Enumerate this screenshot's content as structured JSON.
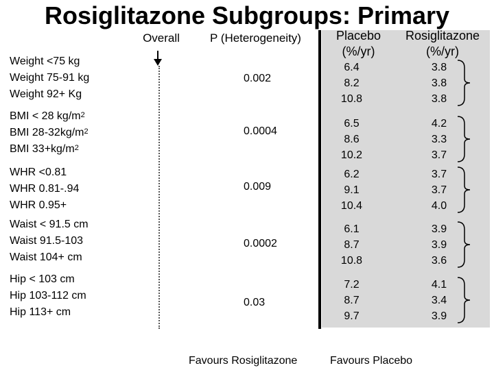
{
  "title": "Rosiglitazone Subgroups: Primary",
  "headers": {
    "overall": "Overall",
    "p_heterogeneity": "P (Heterogeneity)",
    "placebo_line1": "Placebo",
    "placebo_line2": "(%/yr)",
    "rosiglitazone_line1": "Rosiglitazone",
    "rosiglitazone_line2": "(%/yr)"
  },
  "groups": [
    {
      "labels": [
        {
          "text": "Weight <75 kg",
          "sup": ""
        },
        {
          "text": "Weight 75-91 kg",
          "sup": ""
        },
        {
          "text": "Weight 92+ Kg",
          "sup": ""
        }
      ],
      "p_value": "0.002",
      "placebo": [
        "6.4",
        "8.2",
        "10.8"
      ],
      "rosiglitazone": [
        "3.8",
        "3.8",
        "3.8"
      ]
    },
    {
      "labels": [
        {
          "text": "BMI < 28 kg/m",
          "sup": "2"
        },
        {
          "text": "BMI 28-32kg/m",
          "sup": "2"
        },
        {
          "text": "BMI 33+kg/m",
          "sup": "2"
        }
      ],
      "p_value": "0.0004",
      "placebo": [
        "6.5",
        "8.6",
        "10.2"
      ],
      "rosiglitazone": [
        "4.2",
        "3.3",
        "3.7"
      ]
    },
    {
      "labels": [
        {
          "text": "WHR <0.81",
          "sup": ""
        },
        {
          "text": "WHR 0.81-.94",
          "sup": ""
        },
        {
          "text": "WHR 0.95+",
          "sup": ""
        }
      ],
      "p_value": "0.009",
      "placebo": [
        "6.2",
        "9.1",
        "10.4"
      ],
      "rosiglitazone": [
        "3.7",
        "3.7",
        "4.0"
      ]
    },
    {
      "labels": [
        {
          "text": "Waist < 91.5 cm",
          "sup": ""
        },
        {
          "text": "Waist 91.5-103",
          "sup": ""
        },
        {
          "text": "Waist 104+ cm",
          "sup": ""
        }
      ],
      "p_value": "0.0002",
      "placebo": [
        "6.1",
        "8.7",
        "10.8"
      ],
      "rosiglitazone": [
        "3.9",
        "3.9",
        "3.6"
      ]
    },
    {
      "labels": [
        {
          "text": "Hip < 103 cm",
          "sup": ""
        },
        {
          "text": "Hip 103-112 cm",
          "sup": ""
        },
        {
          "text": "Hip 113+ cm",
          "sup": ""
        }
      ],
      "p_value": "0.03",
      "placebo": [
        "7.2",
        "8.7",
        "9.7"
      ],
      "rosiglitazone": [
        "4.1",
        "3.4",
        "3.9"
      ]
    }
  ],
  "footer": {
    "left": "Favours Rosiglitazone",
    "right": "Favours Placebo"
  }
}
